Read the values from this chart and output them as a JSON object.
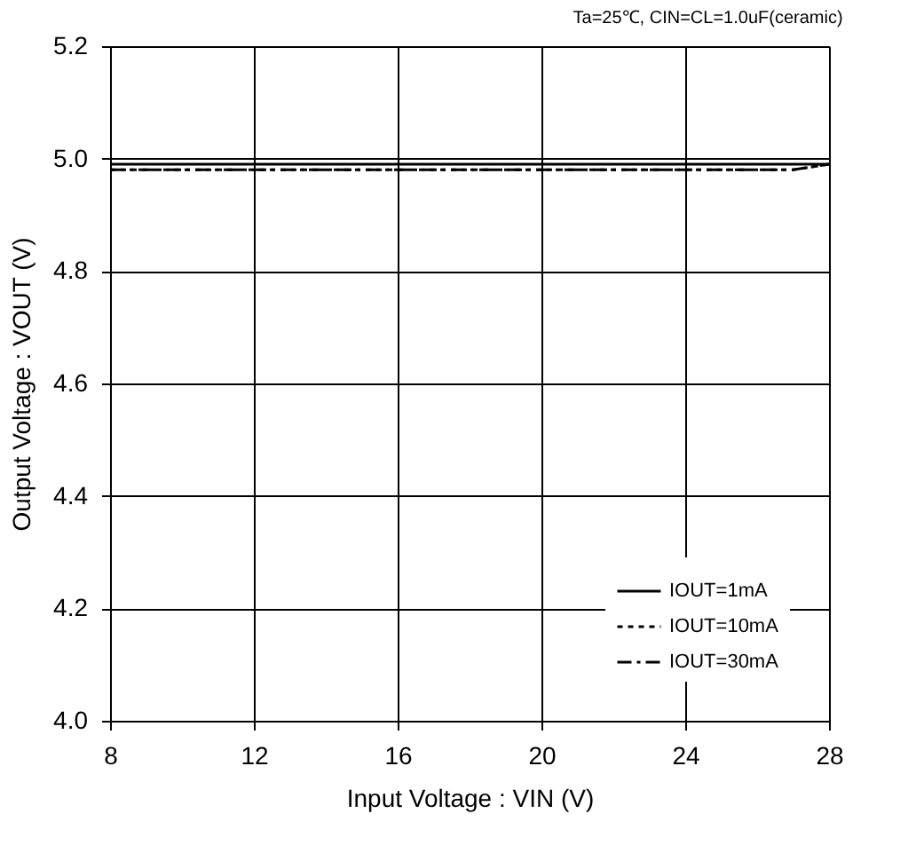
{
  "chart_data": {
    "type": "line",
    "xlabel": "Input Voltage : VIN (V)",
    "ylabel": "Output Voltage : VOUT (V)",
    "annotations": [
      "Ta=25℃, CIN=CL=1.0uF(ceramic)"
    ],
    "x": [
      8,
      12,
      16,
      20,
      24,
      27,
      28
    ],
    "series": [
      {
        "name": "IOUT=1mA",
        "color": "#000000",
        "line_style": "solid",
        "values": [
          4.99,
          4.99,
          4.99,
          4.99,
          4.99,
          4.99,
          4.99
        ]
      },
      {
        "name": "IOUT=10mA",
        "color": "#000000",
        "line_style": "dotted",
        "values": [
          4.98,
          4.98,
          4.98,
          4.98,
          4.98,
          4.98,
          4.99
        ]
      },
      {
        "name": "IOUT=30mA",
        "color": "#000000",
        "line_style": "dashed",
        "values": [
          4.98,
          4.98,
          4.98,
          4.98,
          4.98,
          4.98,
          4.99
        ]
      }
    ],
    "xlim": [
      8,
      28
    ],
    "xticks": [
      8,
      12,
      16,
      20,
      24,
      28
    ],
    "ylim": [
      4.0,
      5.2
    ],
    "yticks": [
      {
        "value": 4,
        "label": "4.0"
      },
      {
        "value": 4.2,
        "label": "4.2"
      },
      {
        "value": 4.4,
        "label": "4.4"
      },
      {
        "value": 4.6,
        "label": "4.6"
      },
      {
        "value": 4.8,
        "label": "4.8"
      },
      {
        "value": 5,
        "label": "5.0"
      },
      {
        "value": 5.2,
        "label": "5.2"
      }
    ],
    "grid": true,
    "legend": "bottom right",
    "marker": "none"
  }
}
